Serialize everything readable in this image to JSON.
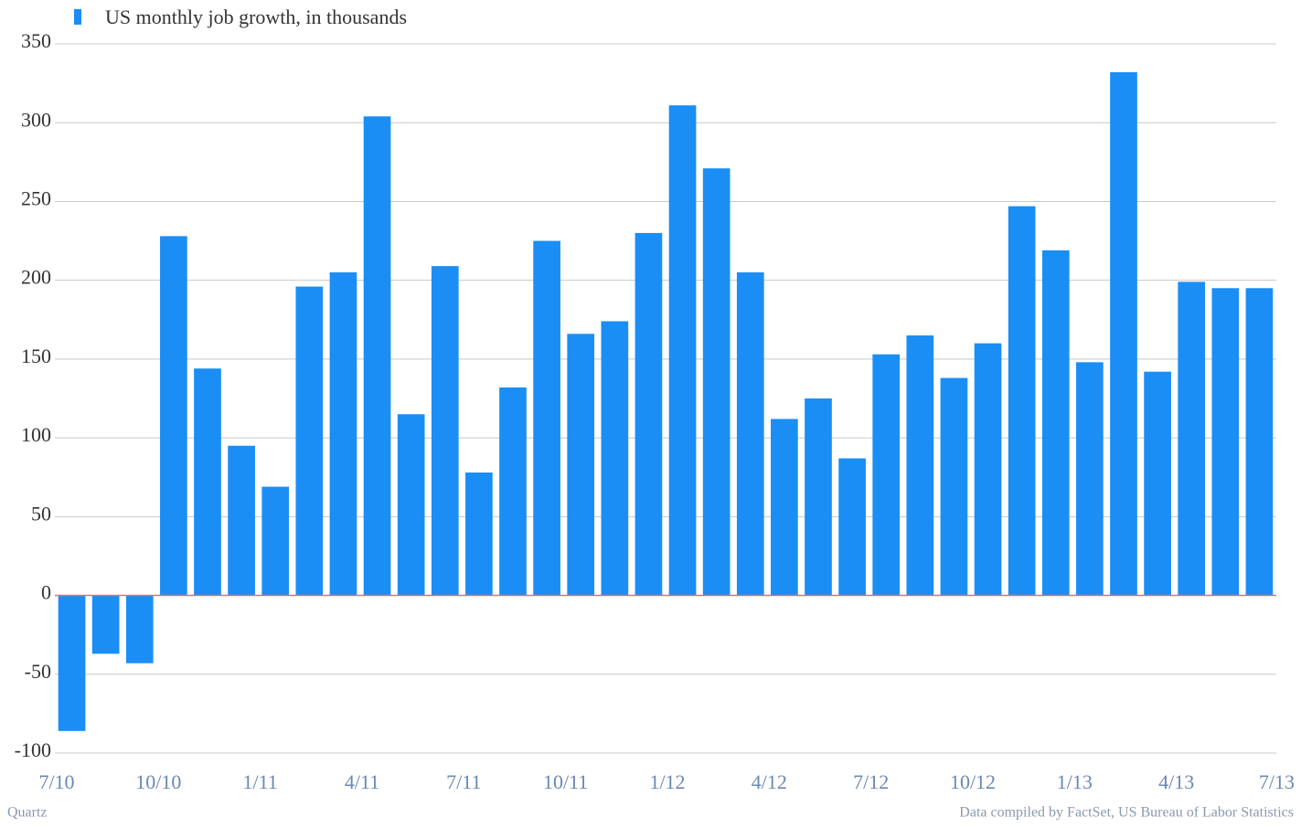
{
  "chart_data": {
    "type": "bar",
    "legend": "US monthly job growth, in thousands",
    "source_left": "Quartz",
    "source_right": "Data compiled by FactSet, US Bureau of Labor Statistics",
    "color": "#1a8ef5",
    "categories": [
      null,
      null,
      null,
      null,
      null,
      null,
      null,
      null,
      null,
      null,
      null,
      null,
      null,
      null,
      null,
      null,
      null,
      null,
      null,
      null,
      null,
      null,
      null,
      null,
      null,
      null,
      null,
      null,
      null,
      null,
      null,
      null,
      null,
      null,
      null,
      null
    ],
    "values": [
      -86,
      -37,
      -43,
      228,
      144,
      95,
      69,
      196,
      205,
      304,
      115,
      209,
      78,
      132,
      225,
      166,
      174,
      230,
      311,
      271,
      205,
      112,
      125,
      87,
      153,
      165,
      138,
      160,
      247,
      219,
      148,
      332,
      142,
      199,
      195,
      195
    ],
    "xticks": [
      "7/10",
      "10/10",
      "1/11",
      "4/11",
      "7/11",
      "10/11",
      "1/12",
      "4/12",
      "7/12",
      "10/12",
      "1/13",
      "4/13",
      "7/13"
    ],
    "ylim": [
      -100,
      350
    ],
    "yticks": [
      -100,
      -50,
      0,
      50,
      100,
      150,
      200,
      250,
      300,
      350
    ],
    "grid": true
  }
}
